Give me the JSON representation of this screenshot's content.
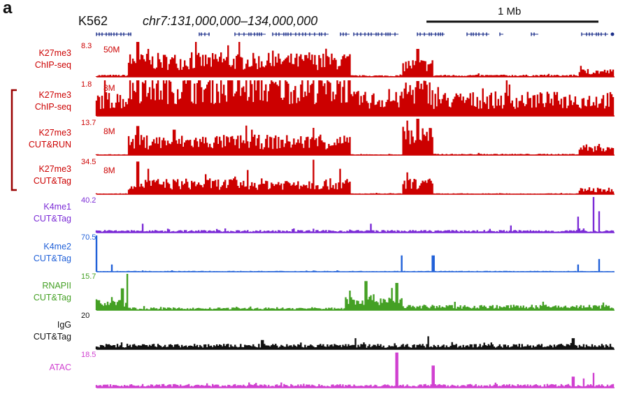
{
  "header": {
    "panel_letter": "a",
    "cell_line": "K562",
    "region": "chr7:131,000,000–134,000,000",
    "scale_bar_label": "1 Mb"
  },
  "colors": {
    "k27me3": "#cc0000",
    "bracket": "#990000",
    "k4me1": "#7b2bd6",
    "k4me2": "#2060d8",
    "rnapii": "#44a024",
    "igg": "#111111",
    "atac": "#d040d0",
    "genes": "#1c2f8a"
  },
  "tracks": [
    {
      "label1": "K27me3",
      "label2": "ChIP-seq",
      "max": "8.3",
      "depth": "50M",
      "color": "#cc0000"
    },
    {
      "label1": "K27me3",
      "label2": "ChIP-seq",
      "max": "1.8",
      "depth": "8M",
      "color": "#cc0000"
    },
    {
      "label1": "K27me3",
      "label2": "CUT&RUN",
      "max": "13.7",
      "depth": "8M",
      "color": "#cc0000"
    },
    {
      "label1": "K27me3",
      "label2": "CUT&Tag",
      "max": "34.5",
      "depth": "8M",
      "color": "#cc0000"
    },
    {
      "label1": "K4me1",
      "label2": "CUT&Tag",
      "max": "40.2",
      "depth": "",
      "color": "#7b2bd6"
    },
    {
      "label1": "K4me2",
      "label2": "CUT&Tag",
      "max": "70.5",
      "depth": "",
      "color": "#2060d8"
    },
    {
      "label1": "RNAPII",
      "label2": "CUT&Tag",
      "max": "15.7",
      "depth": "",
      "color": "#44a024"
    },
    {
      "label1": "IgG",
      "label2": "CUT&Tag",
      "max": "20",
      "depth": "",
      "color": "#111111"
    },
    {
      "label1": "ATAC",
      "label2": "",
      "max": "18.5",
      "depth": "",
      "color": "#d040d0"
    }
  ]
}
